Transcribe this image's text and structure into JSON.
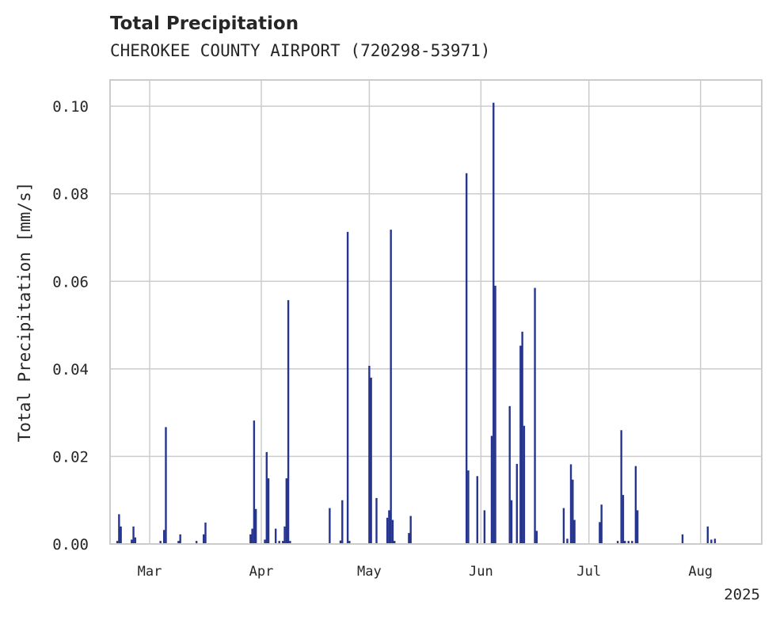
{
  "chart_data": {
    "type": "bar",
    "title": "Total Precipitation",
    "subtitle": "CHEROKEE COUNTY AIRPORT (720298-53971)",
    "xlabel": "",
    "ylabel": "Total Precipitation [mm/s]",
    "year_label": "2025",
    "x_axis_type": "date",
    "xlim": [
      "2025-02-18",
      "2025-08-18"
    ],
    "ylim": [
      0,
      0.106
    ],
    "x_ticks": [
      {
        "date": "2025-03-01",
        "label": "Mar"
      },
      {
        "date": "2025-04-01",
        "label": "Apr"
      },
      {
        "date": "2025-05-01",
        "label": "May"
      },
      {
        "date": "2025-06-01",
        "label": "Jun"
      },
      {
        "date": "2025-07-01",
        "label": "Jul"
      },
      {
        "date": "2025-08-01",
        "label": "Aug"
      }
    ],
    "y_ticks": [
      {
        "value": 0.0,
        "label": "0.00"
      },
      {
        "value": 0.02,
        "label": "0.02"
      },
      {
        "value": 0.04,
        "label": "0.04"
      },
      {
        "value": 0.06,
        "label": "0.06"
      },
      {
        "value": 0.08,
        "label": "0.08"
      },
      {
        "value": 0.1,
        "label": "0.10"
      }
    ],
    "grid": true,
    "series_color": "#26358f",
    "points": [
      {
        "x": "2025-02-20",
        "y": 0.0007
      },
      {
        "x": "2025-02-20T12:00",
        "y": 0.0068
      },
      {
        "x": "2025-02-21",
        "y": 0.004
      },
      {
        "x": "2025-02-24",
        "y": 0.001
      },
      {
        "x": "2025-02-24T12:00",
        "y": 0.004
      },
      {
        "x": "2025-02-25",
        "y": 0.0015
      },
      {
        "x": "2025-03-04",
        "y": 0.0007
      },
      {
        "x": "2025-03-05",
        "y": 0.0032
      },
      {
        "x": "2025-03-05T12:00",
        "y": 0.0267
      },
      {
        "x": "2025-03-09",
        "y": 0.0007
      },
      {
        "x": "2025-03-09T12:00",
        "y": 0.0022
      },
      {
        "x": "2025-03-14",
        "y": 0.0007
      },
      {
        "x": "2025-03-16",
        "y": 0.0022
      },
      {
        "x": "2025-03-16T12:00",
        "y": 0.0049
      },
      {
        "x": "2025-03-29",
        "y": 0.0022
      },
      {
        "x": "2025-03-29T12:00",
        "y": 0.0035
      },
      {
        "x": "2025-03-30",
        "y": 0.0282
      },
      {
        "x": "2025-03-30T12:00",
        "y": 0.008
      },
      {
        "x": "2025-04-02",
        "y": 0.001
      },
      {
        "x": "2025-04-02T12:00",
        "y": 0.021
      },
      {
        "x": "2025-04-03",
        "y": 0.015
      },
      {
        "x": "2025-04-05",
        "y": 0.0035
      },
      {
        "x": "2025-04-06",
        "y": 0.0007
      },
      {
        "x": "2025-04-07",
        "y": 0.0007
      },
      {
        "x": "2025-04-07T12:00",
        "y": 0.004
      },
      {
        "x": "2025-04-08",
        "y": 0.015
      },
      {
        "x": "2025-04-08T12:00",
        "y": 0.0557
      },
      {
        "x": "2025-04-09",
        "y": 0.0007
      },
      {
        "x": "2025-04-20",
        "y": 0.0082
      },
      {
        "x": "2025-04-23",
        "y": 0.0008
      },
      {
        "x": "2025-04-23T12:00",
        "y": 0.01
      },
      {
        "x": "2025-04-25",
        "y": 0.0713
      },
      {
        "x": "2025-04-25T12:00",
        "y": 0.0007
      },
      {
        "x": "2025-05-01",
        "y": 0.0407
      },
      {
        "x": "2025-05-01T12:00",
        "y": 0.038
      },
      {
        "x": "2025-05-03",
        "y": 0.0105
      },
      {
        "x": "2025-05-06",
        "y": 0.006
      },
      {
        "x": "2025-05-06T12:00",
        "y": 0.0077
      },
      {
        "x": "2025-05-07",
        "y": 0.0718
      },
      {
        "x": "2025-05-07T12:00",
        "y": 0.0055
      },
      {
        "x": "2025-05-08",
        "y": 0.0007
      },
      {
        "x": "2025-05-12",
        "y": 0.0025
      },
      {
        "x": "2025-05-12T12:00",
        "y": 0.0064
      },
      {
        "x": "2025-05-28",
        "y": 0.0847
      },
      {
        "x": "2025-05-28T12:00",
        "y": 0.0168
      },
      {
        "x": "2025-05-31",
        "y": 0.0155
      },
      {
        "x": "2025-06-02",
        "y": 0.0077
      },
      {
        "x": "2025-06-04",
        "y": 0.0247
      },
      {
        "x": "2025-06-04T12:00",
        "y": 0.1008
      },
      {
        "x": "2025-06-05",
        "y": 0.059
      },
      {
        "x": "2025-06-09",
        "y": 0.0315
      },
      {
        "x": "2025-06-09T12:00",
        "y": 0.01
      },
      {
        "x": "2025-06-11",
        "y": 0.0183
      },
      {
        "x": "2025-06-12",
        "y": 0.0453
      },
      {
        "x": "2025-06-12T12:00",
        "y": 0.0485
      },
      {
        "x": "2025-06-13",
        "y": 0.027
      },
      {
        "x": "2025-06-16",
        "y": 0.0585
      },
      {
        "x": "2025-06-16T12:00",
        "y": 0.003
      },
      {
        "x": "2025-06-24",
        "y": 0.0082
      },
      {
        "x": "2025-06-25",
        "y": 0.0012
      },
      {
        "x": "2025-06-26",
        "y": 0.0182
      },
      {
        "x": "2025-06-26T12:00",
        "y": 0.0147
      },
      {
        "x": "2025-06-27",
        "y": 0.0055
      },
      {
        "x": "2025-07-04",
        "y": 0.005
      },
      {
        "x": "2025-07-04T12:00",
        "y": 0.009
      },
      {
        "x": "2025-07-09",
        "y": 0.0007
      },
      {
        "x": "2025-07-10",
        "y": 0.026
      },
      {
        "x": "2025-07-10T12:00",
        "y": 0.0112
      },
      {
        "x": "2025-07-11",
        "y": 0.0007
      },
      {
        "x": "2025-07-12",
        "y": 0.0007
      },
      {
        "x": "2025-07-13",
        "y": 0.0007
      },
      {
        "x": "2025-07-14",
        "y": 0.0178
      },
      {
        "x": "2025-07-14T12:00",
        "y": 0.0077
      },
      {
        "x": "2025-07-27",
        "y": 0.0022
      },
      {
        "x": "2025-08-03",
        "y": 0.004
      },
      {
        "x": "2025-08-04",
        "y": 0.001
      },
      {
        "x": "2025-08-05",
        "y": 0.0012
      }
    ]
  }
}
